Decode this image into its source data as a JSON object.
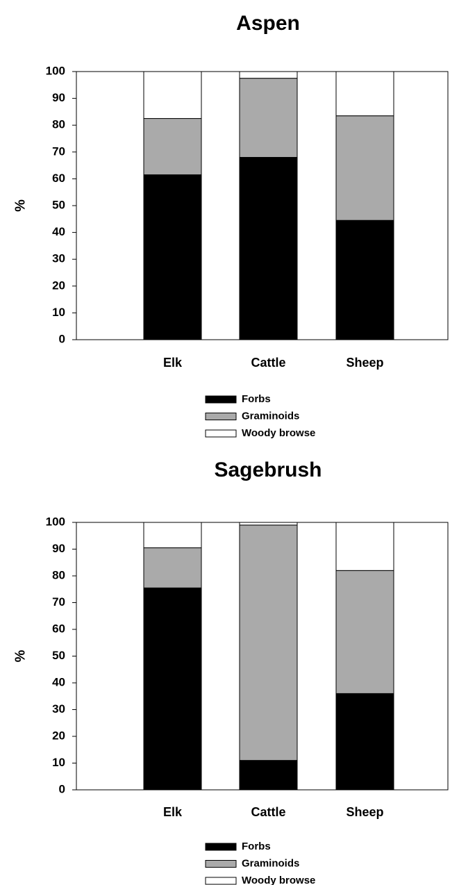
{
  "chart_data": [
    {
      "type": "stacked_bar",
      "title": "Aspen",
      "y_label": "%",
      "categories": [
        "Elk",
        "Cattle",
        "Sheep"
      ],
      "series": [
        {
          "name": "Forbs",
          "color": "#000000",
          "values": [
            61.5,
            68,
            44.5
          ]
        },
        {
          "name": "Graminoids",
          "color": "#aaaaaa",
          "values": [
            21,
            29.5,
            39
          ]
        },
        {
          "name": "Woody browse",
          "color": "#ffffff",
          "values": [
            17.5,
            2.5,
            16.5
          ]
        }
      ],
      "ylim": [
        0,
        100
      ],
      "yticks": [
        0,
        10,
        20,
        30,
        40,
        50,
        60,
        70,
        80,
        90,
        100
      ]
    },
    {
      "type": "stacked_bar",
      "title": "Sagebrush",
      "y_label": "%",
      "categories": [
        "Elk",
        "Cattle",
        "Sheep"
      ],
      "series": [
        {
          "name": "Forbs",
          "color": "#000000",
          "values": [
            75.5,
            11,
            36
          ]
        },
        {
          "name": "Graminoids",
          "color": "#aaaaaa",
          "values": [
            15,
            88,
            46
          ]
        },
        {
          "name": "Woody browse",
          "color": "#ffffff",
          "values": [
            9.5,
            1,
            18
          ]
        }
      ],
      "ylim": [
        0,
        100
      ],
      "yticks": [
        0,
        10,
        20,
        30,
        40,
        50,
        60,
        70,
        80,
        90,
        100
      ]
    }
  ]
}
